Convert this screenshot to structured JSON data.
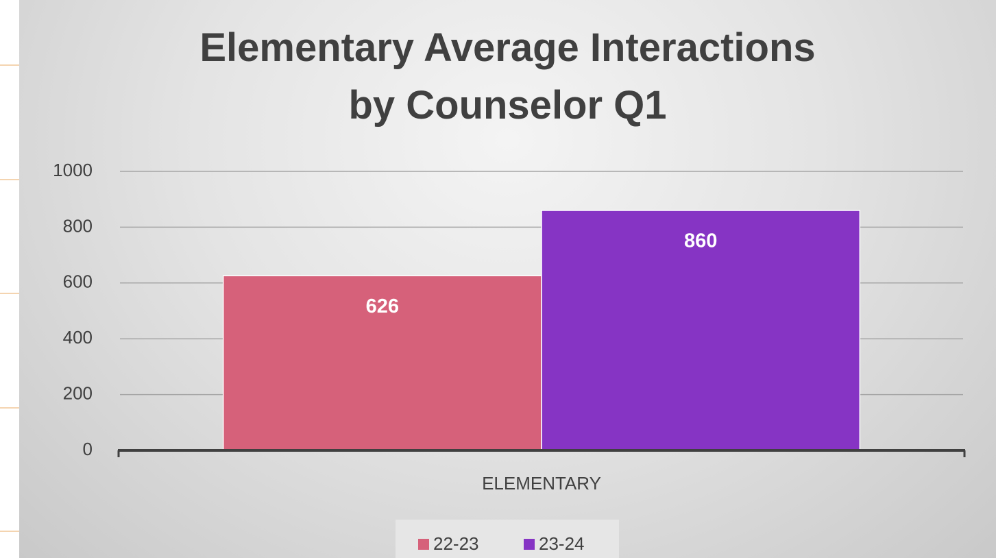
{
  "chart_data": {
    "type": "bar",
    "title": "Elementary Average Interactions\nby Counselor Q1",
    "categories": [
      "ELEMENTARY"
    ],
    "series": [
      {
        "name": "22-23",
        "color": "#d6617a",
        "values": [
          626
        ]
      },
      {
        "name": "23-24",
        "color": "#8634c4",
        "values": [
          860
        ]
      }
    ],
    "ylim": [
      0,
      1000
    ],
    "yticks": [
      0,
      200,
      400,
      600,
      800,
      1000
    ],
    "grid": true,
    "legend": "bottom"
  }
}
